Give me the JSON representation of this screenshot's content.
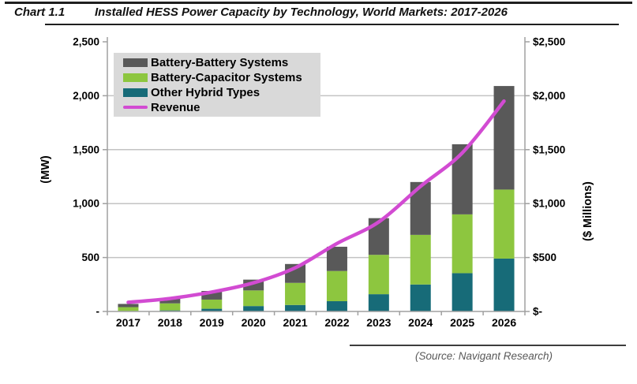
{
  "header": {
    "chart_label": "Chart 1.1",
    "title": "Installed HESS Power Capacity by Technology, World Markets: 2017-2026"
  },
  "footer": {
    "source": "(Source: Navigant Research)"
  },
  "chart_data": {
    "type": "bar",
    "subtype": "stacked-bars-with-line-overlay",
    "categories": [
      "2017",
      "2018",
      "2019",
      "2020",
      "2021",
      "2022",
      "2023",
      "2024",
      "2025",
      "2026"
    ],
    "series": [
      {
        "name": "Other Hybrid Types",
        "role": "bar-bottom",
        "color": "#176B78",
        "values": [
          5,
          10,
          25,
          50,
          60,
          95,
          160,
          250,
          355,
          490
        ]
      },
      {
        "name": "Battery-Capacitor Systems",
        "role": "bar-middle",
        "color": "#8DC63F",
        "values": [
          35,
          65,
          85,
          145,
          205,
          280,
          365,
          460,
          545,
          640
        ]
      },
      {
        "name": "Battery-Battery Systems",
        "role": "bar-top",
        "color": "#595959",
        "values": [
          30,
          45,
          80,
          100,
          175,
          225,
          340,
          490,
          650,
          960
        ]
      }
    ],
    "bar_totals": [
      70,
      120,
      190,
      295,
      440,
      600,
      865,
      1200,
      1550,
      2090
    ],
    "line_series": {
      "name": "Revenue",
      "color": "#D24BD2",
      "axis": "right",
      "values": [
        85,
        120,
        180,
        265,
        405,
        630,
        830,
        1160,
        1470,
        1950
      ]
    },
    "left_axis": {
      "label": "(MW)",
      "min": 0,
      "max": 2500,
      "step": 500,
      "ticks": [
        "2,500",
        "2,000",
        "1,500",
        "1,000",
        "500",
        "-"
      ]
    },
    "right_axis": {
      "label": "($ Millions)",
      "min": 0,
      "max": 2500,
      "step": 500,
      "ticks": [
        "$2,500",
        "$2,000",
        "$1,500",
        "$1,000",
        "$500",
        "$-"
      ]
    },
    "legend": {
      "position": "top-left",
      "background": "#D9D9D9",
      "items": [
        {
          "label": "Battery-Battery Systems",
          "color": "#595959",
          "swatch": "rect"
        },
        {
          "label": "Battery-Capacitor Systems",
          "color": "#8DC63F",
          "swatch": "rect"
        },
        {
          "label": "Other Hybrid Types",
          "color": "#176B78",
          "swatch": "rect"
        },
        {
          "label": "Revenue",
          "color": "#D24BD2",
          "swatch": "line"
        }
      ]
    },
    "grid": true,
    "style": {
      "grid_color": "#C3C3C3",
      "axis_color": "#A0A0A0",
      "text_color": "#000000"
    }
  }
}
